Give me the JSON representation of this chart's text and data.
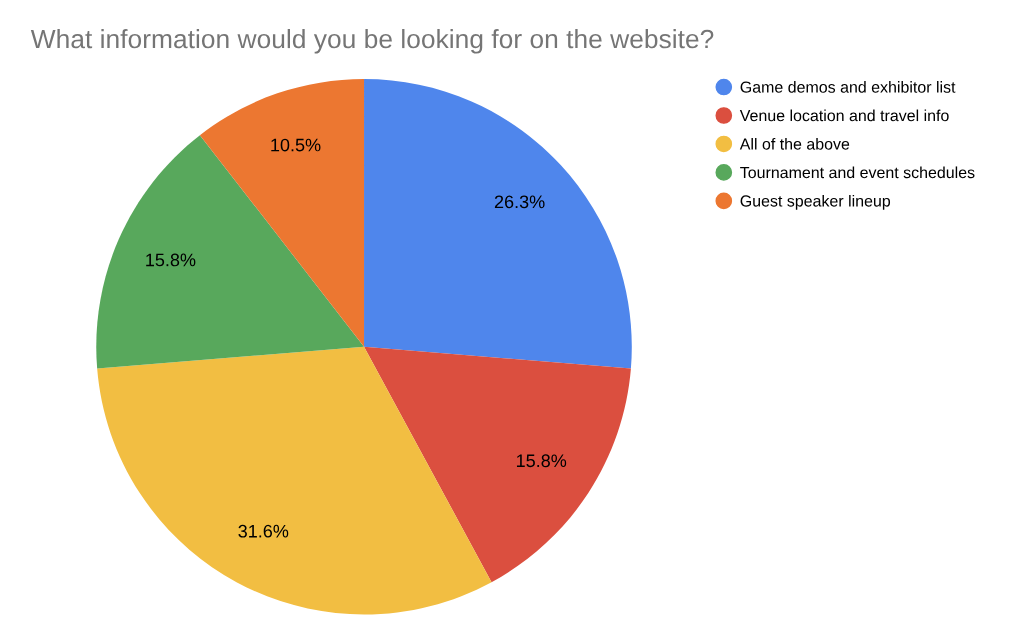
{
  "chart_data": {
    "type": "pie",
    "title": "What information would you be looking for on the website?",
    "categories": [
      "Game demos and exhibitor list",
      "Venue location and travel info",
      "All of the above",
      "Tournament and event schedules",
      "Guest speaker lineup"
    ],
    "values": [
      26.3,
      15.8,
      31.6,
      15.8,
      10.5
    ],
    "colors": [
      "#4f86ec",
      "#db4f3f",
      "#f2be42",
      "#58a85c",
      "#ec7731"
    ],
    "value_labels": [
      "26.3%",
      "15.8%",
      "31.6%",
      "15.8%",
      "10.5%"
    ],
    "legend": "top right"
  }
}
